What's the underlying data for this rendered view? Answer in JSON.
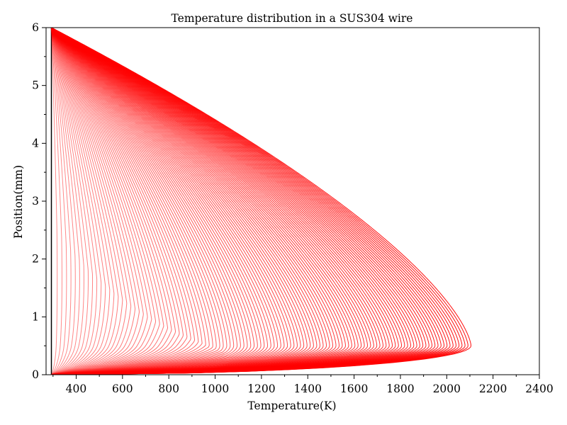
{
  "chart_data": {
    "type": "line",
    "title": "Temperature distribution in a SUS304 wire",
    "xlabel": "Temperature(K)",
    "ylabel": "Position(mm)",
    "xlim": [
      270,
      2400
    ],
    "ylim": [
      0,
      6
    ],
    "x_ticks_major": [
      400,
      600,
      800,
      1000,
      1200,
      1400,
      1600,
      1800,
      2000,
      2200,
      2400
    ],
    "x_ticks_minor": [
      300,
      500,
      700,
      900,
      1100,
      1300,
      1500,
      1700,
      1900,
      2100,
      2300
    ],
    "y_ticks_major": [
      0,
      1,
      2,
      3,
      4,
      5,
      6
    ],
    "y_ticks_minor": [
      0.5,
      1.5,
      2.5,
      3.5,
      4.5,
      5.5
    ],
    "grid": false,
    "legend": "none",
    "line_color": "#ff0000",
    "initial_line_color": "#000000",
    "profile_count": 120,
    "initial_temperature": 293,
    "boundary_temperature": 293,
    "peak_position_final": 0.5,
    "peak_temperature_final": 2105,
    "series": [
      {
        "description": "initial temperature profile (uniform)",
        "points": [
          [
            293,
            0
          ],
          [
            293,
            6
          ]
        ]
      },
      {
        "description": "final temperature profile (outermost red curve)",
        "points": [
          [
            293,
            0
          ],
          [
            1000,
            0.02
          ],
          [
            1500,
            0.05
          ],
          [
            1800,
            0.12
          ],
          [
            2000,
            0.25
          ],
          [
            2080,
            0.4
          ],
          [
            2105,
            0.5
          ],
          [
            2095,
            0.6
          ],
          [
            2060,
            0.75
          ],
          [
            2000,
            1.0
          ],
          [
            1800,
            1.55
          ],
          [
            1600,
            2.2
          ],
          [
            1400,
            2.9
          ],
          [
            1200,
            3.6
          ],
          [
            1000,
            4.3
          ],
          [
            800,
            4.95
          ],
          [
            600,
            5.45
          ],
          [
            400,
            5.85
          ],
          [
            293,
            6
          ]
        ]
      }
    ]
  }
}
